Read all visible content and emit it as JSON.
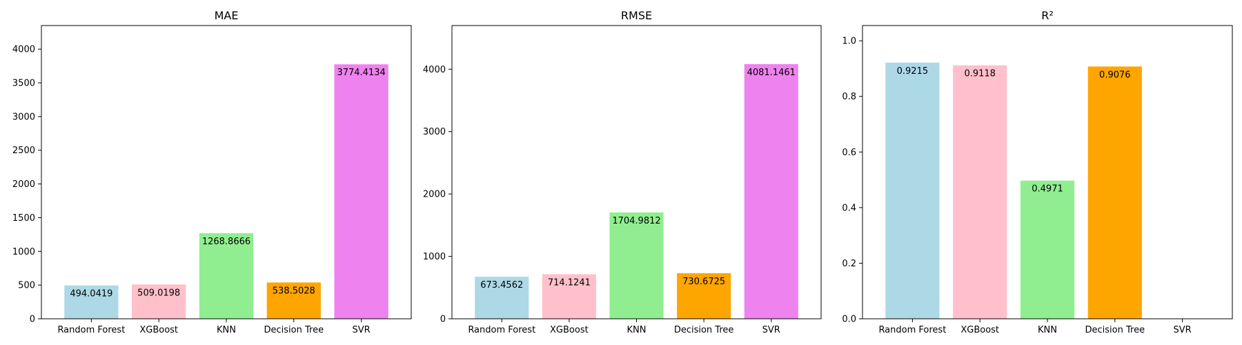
{
  "chart_data": [
    {
      "type": "bar",
      "title": "MAE",
      "categories": [
        "Random Forest",
        "XGBoost",
        "KNN",
        "Decision Tree",
        "SVR"
      ],
      "values": [
        494.0419,
        509.0198,
        1268.8666,
        538.5028,
        3774.4134
      ],
      "value_labels": [
        "494.0419",
        "509.0198",
        "1268.8666",
        "538.5028",
        "3774.4134"
      ],
      "yticks": [
        0,
        500,
        1000,
        1500,
        2000,
        2500,
        3000,
        3500,
        4000
      ],
      "ylim": [
        0,
        4350
      ],
      "grid": false
    },
    {
      "type": "bar",
      "title": "RMSE",
      "categories": [
        "Random Forest",
        "XGBoost",
        "KNN",
        "Decision Tree",
        "SVR"
      ],
      "values": [
        673.4562,
        714.1241,
        1704.9812,
        730.6725,
        4081.1461
      ],
      "value_labels": [
        "673.4562",
        "714.1241",
        "1704.9812",
        "730.6725",
        "4081.1461"
      ],
      "yticks": [
        0,
        1000,
        2000,
        3000,
        4000
      ],
      "ylim": [
        0,
        4700
      ],
      "grid": false
    },
    {
      "type": "bar",
      "title": "R²",
      "categories": [
        "Random Forest",
        "XGBoost",
        "KNN",
        "Decision Tree",
        "SVR"
      ],
      "values": [
        0.9215,
        0.9118,
        0.4971,
        0.9076,
        0
      ],
      "value_labels": [
        "0.9215",
        "0.9118",
        "0.4971",
        "0.9076",
        ""
      ],
      "yticks": [
        0.0,
        0.2,
        0.4,
        0.6,
        0.8,
        1.0
      ],
      "ytick_labels": [
        "0.0",
        "0.2",
        "0.4",
        "0.6",
        "0.8",
        "1.0"
      ],
      "ylim": [
        0,
        1.055
      ],
      "grid": false
    }
  ],
  "colors": {
    "bars": [
      "#add8e6",
      "#ffc0cb",
      "#90ee90",
      "#ffa500",
      "#ee82ee"
    ],
    "axis": "#000000"
  }
}
